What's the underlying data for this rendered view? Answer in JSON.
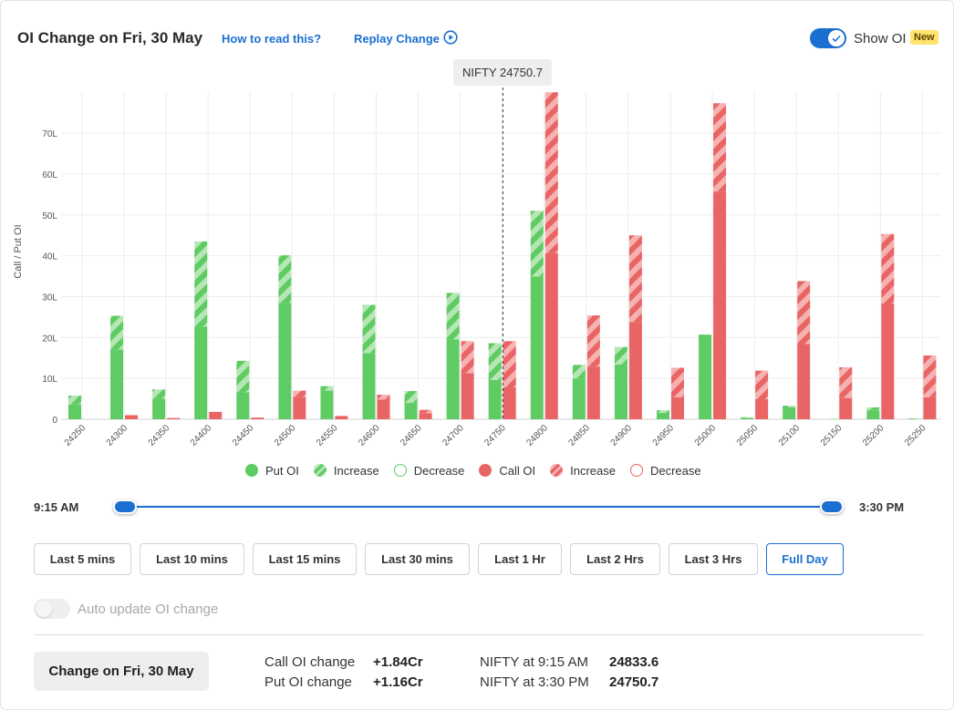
{
  "header": {
    "title": "OI Change on Fri, 30 May",
    "how_to_read": "How to read this?",
    "replay": "Replay Change",
    "show_oi_label": "Show OI",
    "new_badge": "New"
  },
  "spot_tooltip": "NIFTY 24750.7",
  "colors": {
    "put": "#5fcb63",
    "put_light": "#b5e6b3",
    "call": "#e96565",
    "call_light": "#f5b2b0",
    "accent": "#1b6fd1"
  },
  "chart_data": {
    "type": "bar",
    "ylabel": "Call / Put OI",
    "yticks": [
      "0",
      "10L",
      "20L",
      "30L",
      "40L",
      "50L",
      "60L",
      "70L"
    ],
    "ylim": [
      0,
      80
    ],
    "spot": 24750.7,
    "categories": [
      "24250",
      "24300",
      "24350",
      "24400",
      "24450",
      "24500",
      "24550",
      "24600",
      "24650",
      "24700",
      "24750",
      "24800",
      "24850",
      "24900",
      "24950",
      "25000",
      "25050",
      "25100",
      "25150",
      "25200",
      "25250"
    ],
    "put_oi": [
      3.6,
      17.1,
      5.0,
      22.7,
      6.6,
      28.5,
      7.0,
      16.2,
      4.0,
      19.5,
      9.6,
      34.9,
      10.0,
      13.4,
      1.6,
      20.7,
      0.3,
      2.9,
      0.0,
      2.2,
      0.0
    ],
    "put_increase": [
      2.2,
      8.2,
      2.3,
      20.8,
      7.7,
      11.6,
      1.1,
      11.8,
      2.9,
      11.4,
      9.0,
      16.1,
      3.3,
      4.3,
      0.6,
      0.0,
      0.2,
      0.4,
      0.1,
      0.7,
      0.2
    ],
    "call_oi": [
      0.0,
      1.0,
      0.3,
      1.8,
      0.4,
      5.5,
      0.8,
      4.8,
      1.5,
      11.3,
      7.8,
      40.6,
      12.9,
      23.8,
      5.4,
      55.7,
      4.9,
      18.4,
      5.2,
      28.3,
      5.4
    ],
    "call_increase": [
      0.0,
      0.0,
      0.0,
      0.0,
      0.0,
      1.5,
      0.0,
      1.2,
      0.8,
      7.8,
      11.3,
      39.4,
      12.5,
      21.2,
      7.2,
      21.6,
      7.0,
      15.4,
      7.5,
      17.0,
      10.2
    ],
    "legend": [
      {
        "label": "Put OI",
        "style": "put-solid"
      },
      {
        "label": "Increase",
        "style": "put-hatch"
      },
      {
        "label": "Decrease",
        "style": "put-outline"
      },
      {
        "label": "Call OI",
        "style": "call-solid"
      },
      {
        "label": "Increase",
        "style": "call-hatch"
      },
      {
        "label": "Decrease",
        "style": "call-outline"
      }
    ]
  },
  "slider": {
    "start_label": "9:15 AM",
    "end_label": "3:30 PM"
  },
  "ranges": [
    "Last 5 mins",
    "Last 10 mins",
    "Last 15 mins",
    "Last 30 mins",
    "Last 1 Hr",
    "Last 2 Hrs",
    "Last 3 Hrs",
    "Full Day"
  ],
  "active_range": "Full Day",
  "auto_update_label": "Auto update OI change",
  "summary": {
    "change_button": "Change on Fri, 30 May",
    "call_oi_change_label": "Call OI change",
    "call_oi_change_value": "+1.84Cr",
    "put_oi_change_label": "Put OI change",
    "put_oi_change_value": "+1.16Cr",
    "nifty_open_label": "NIFTY at 9:15 AM",
    "nifty_open_value": "24833.6",
    "nifty_close_label": "NIFTY at 3:30 PM",
    "nifty_close_value": "24750.7"
  }
}
